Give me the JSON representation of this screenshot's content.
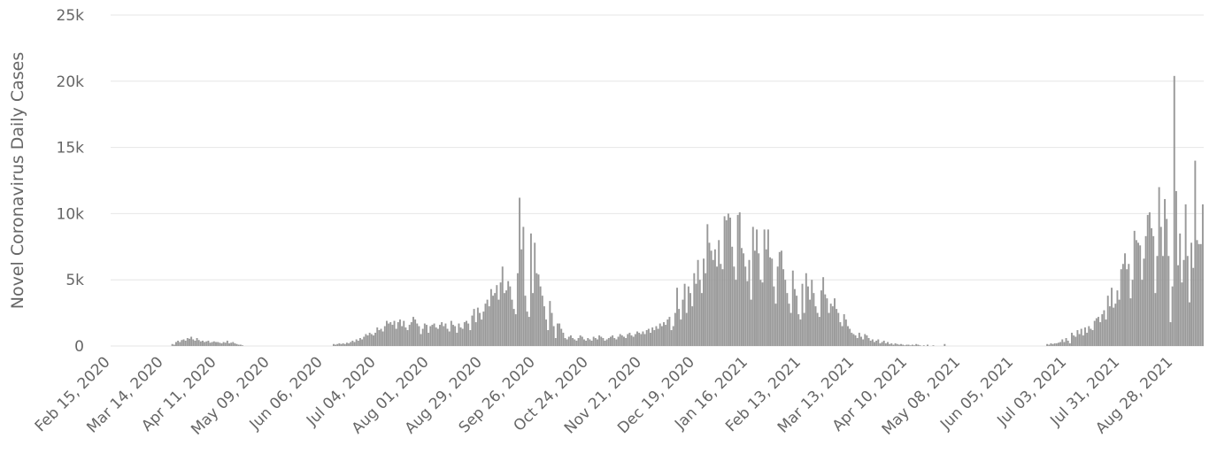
{
  "chart_data": {
    "type": "bar",
    "y_label": "Novel Coronavirus Daily Cases",
    "color": "#999999",
    "grid": true,
    "ylim": [
      0,
      25000
    ],
    "yticks": [
      0,
      {
        "value": 5000,
        "label": "5k"
      },
      {
        "value": 10000,
        "label": "10k"
      },
      {
        "value": 15000,
        "label": "15k"
      },
      {
        "value": 20000,
        "label": "20k"
      },
      {
        "value": 25000,
        "label": "25k"
      }
    ],
    "categories": [
      "Feb 15, 2020",
      null,
      null,
      null,
      null,
      null,
      null,
      null,
      null,
      null,
      null,
      null,
      null,
      null,
      null,
      null,
      null,
      null,
      null,
      null,
      null,
      null,
      null,
      null,
      null,
      null,
      null,
      null,
      "Mar 14, 2020",
      null,
      null,
      null,
      null,
      null,
      null,
      null,
      null,
      null,
      null,
      null,
      null,
      null,
      null,
      null,
      null,
      null,
      null,
      null,
      null,
      null,
      null,
      null,
      null,
      null,
      null,
      null,
      "Apr 11, 2020",
      null,
      null,
      null,
      null,
      null,
      null,
      null,
      null,
      null,
      null,
      null,
      null,
      null,
      null,
      null,
      null,
      null,
      null,
      null,
      null,
      null,
      null,
      null,
      null,
      null,
      null,
      null,
      "May 09, 2020",
      null,
      null,
      null,
      null,
      null,
      null,
      null,
      null,
      null,
      null,
      null,
      null,
      null,
      null,
      null,
      null,
      null,
      null,
      null,
      null,
      null,
      null,
      null,
      null,
      null,
      null,
      null,
      "Jun 06, 2020",
      null,
      null,
      null,
      null,
      null,
      null,
      null,
      null,
      null,
      null,
      null,
      null,
      null,
      null,
      null,
      null,
      null,
      null,
      null,
      null,
      null,
      null,
      null,
      null,
      null,
      null,
      null,
      "Jul 04, 2020",
      null,
      null,
      null,
      null,
      null,
      null,
      null,
      null,
      null,
      null,
      null,
      null,
      null,
      null,
      null,
      null,
      null,
      null,
      null,
      null,
      null,
      null,
      null,
      null,
      null,
      null,
      null,
      "Aug 01, 2020",
      null,
      null,
      null,
      null,
      null,
      null,
      null,
      null,
      null,
      null,
      null,
      null,
      null,
      null,
      null,
      null,
      null,
      null,
      null,
      null,
      null,
      null,
      null,
      null,
      null,
      null,
      null,
      "Aug 29, 2020",
      null,
      null,
      null,
      null,
      null,
      null,
      null,
      null,
      null,
      null,
      null,
      null,
      null,
      null,
      null,
      null,
      null,
      null,
      null,
      null,
      null,
      null,
      null,
      null,
      null,
      null,
      null,
      "Sep 26, 2020",
      null,
      null,
      null,
      null,
      null,
      null,
      null,
      null,
      null,
      null,
      null,
      null,
      null,
      null,
      null,
      null,
      null,
      null,
      null,
      null,
      null,
      null,
      null,
      null,
      null,
      null,
      null,
      "Oct 24, 2020",
      null,
      null,
      null,
      null,
      null,
      null,
      null,
      null,
      null,
      null,
      null,
      null,
      null,
      null,
      null,
      null,
      null,
      null,
      null,
      null,
      null,
      null,
      null,
      null,
      null,
      null,
      null,
      "Nov 21, 2020",
      null,
      null,
      null,
      null,
      null,
      null,
      null,
      null,
      null,
      null,
      null,
      null,
      null,
      null,
      null,
      null,
      null,
      null,
      null,
      null,
      null,
      null,
      null,
      null,
      null,
      null,
      null,
      "Dec 19, 2020",
      null,
      null,
      null,
      null,
      null,
      null,
      null,
      null,
      null,
      null,
      null,
      null,
      null,
      null,
      null,
      null,
      null,
      null,
      null,
      null,
      null,
      null,
      null,
      null,
      null,
      null,
      null,
      "Jan 16, 2021",
      null,
      null,
      null,
      null,
      null,
      null,
      null,
      null,
      null,
      null,
      null,
      null,
      null,
      null,
      null,
      null,
      null,
      null,
      null,
      null,
      null,
      null,
      null,
      null,
      null,
      null,
      null,
      "Feb 13, 2021",
      null,
      null,
      null,
      null,
      null,
      null,
      null,
      null,
      null,
      null,
      null,
      null,
      null,
      null,
      null,
      null,
      null,
      null,
      null,
      null,
      null,
      null,
      null,
      null,
      null,
      null,
      null,
      "Mar 13, 2021",
      null,
      null,
      null,
      null,
      null,
      null,
      null,
      null,
      null,
      null,
      null,
      null,
      null,
      null,
      null,
      null,
      null,
      null,
      null,
      null,
      null,
      null,
      null,
      null,
      null,
      null,
      null,
      "Apr 10, 2021",
      null,
      null,
      null,
      null,
      null,
      null,
      null,
      null,
      null,
      null,
      null,
      null,
      null,
      null,
      null,
      null,
      null,
      null,
      null,
      null,
      null,
      null,
      null,
      null,
      null,
      null,
      null,
      "May 08, 2021",
      null,
      null,
      null,
      null,
      null,
      null,
      null,
      null,
      null,
      null,
      null,
      null,
      null,
      null,
      null,
      null,
      null,
      null,
      null,
      null,
      null,
      null,
      null,
      null,
      null,
      null,
      null,
      "Jun 05, 2021",
      null,
      null,
      null,
      null,
      null,
      null,
      null,
      null,
      null,
      null,
      null,
      null,
      null,
      null,
      null,
      null,
      null,
      null,
      null,
      null,
      null,
      null,
      null,
      null,
      null,
      null,
      null,
      "Jul 03, 2021",
      null,
      null,
      null,
      null,
      null,
      null,
      null,
      null,
      null,
      null,
      null,
      null,
      null,
      null,
      null,
      null,
      null,
      null,
      null,
      null,
      null,
      null,
      null,
      null,
      null,
      null,
      null,
      "Jul 31, 2021",
      null,
      null,
      null,
      null,
      null,
      null,
      null,
      null,
      null,
      null,
      null,
      null,
      null,
      null,
      null,
      null,
      null,
      null,
      null,
      null,
      null,
      null,
      null,
      null,
      null,
      null,
      null,
      "Aug 28, 2021",
      null,
      null,
      null,
      null,
      null,
      null,
      null,
      null,
      null,
      null,
      null,
      null,
      null,
      null,
      null
    ],
    "values": [
      0,
      0,
      0,
      0,
      0,
      0,
      0,
      0,
      0,
      0,
      0,
      0,
      0,
      0,
      0,
      0,
      0,
      0,
      0,
      0,
      0,
      0,
      0,
      0,
      0,
      0,
      0,
      0,
      0,
      0,
      0,
      0,
      150,
      100,
      300,
      400,
      300,
      450,
      500,
      400,
      600,
      550,
      700,
      500,
      400,
      600,
      450,
      350,
      400,
      300,
      350,
      400,
      250,
      300,
      350,
      300,
      300,
      250,
      200,
      300,
      250,
      400,
      200,
      250,
      300,
      200,
      150,
      100,
      100,
      50,
      0,
      0,
      0,
      0,
      0,
      0,
      0,
      0,
      0,
      0,
      0,
      0,
      0,
      0,
      0,
      0,
      0,
      0,
      0,
      0,
      0,
      0,
      0,
      0,
      0,
      0,
      0,
      0,
      0,
      0,
      0,
      0,
      0,
      0,
      0,
      0,
      0,
      0,
      0,
      0,
      0,
      0,
      0,
      0,
      0,
      0,
      0,
      150,
      100,
      150,
      200,
      150,
      200,
      150,
      250,
      200,
      300,
      400,
      300,
      500,
      400,
      600,
      500,
      700,
      900,
      800,
      1000,
      900,
      800,
      1000,
      1400,
      1200,
      1300,
      1100,
      1500,
      1900,
      1700,
      1800,
      1600,
      1900,
      1300,
      1800,
      2000,
      1500,
      1900,
      1400,
      1200,
      1600,
      1800,
      2200,
      2000,
      1700,
      1500,
      900,
      1300,
      1700,
      1600,
      1000,
      1500,
      1600,
      1700,
      1400,
      1300,
      1600,
      1800,
      1500,
      1700,
      1300,
      1100,
      1900,
      1600,
      1500,
      1000,
      1700,
      1400,
      1300,
      1800,
      1900,
      1700,
      1200,
      2300,
      2800,
      1800,
      2900,
      2500,
      2000,
      2600,
      3200,
      3500,
      3000,
      4300,
      3800,
      4000,
      4600,
      3500,
      4800,
      6000,
      4000,
      4200,
      4900,
      4500,
      3500,
      2800,
      2400,
      5500,
      11200,
      7300,
      9000,
      3800,
      2600,
      2200,
      8500,
      4000,
      7800,
      5500,
      5400,
      4500,
      3800,
      3000,
      2000,
      1200,
      3400,
      2500,
      1500,
      600,
      1700,
      1700,
      1300,
      1000,
      600,
      500,
      700,
      800,
      600,
      500,
      400,
      600,
      800,
      700,
      500,
      400,
      600,
      500,
      400,
      700,
      600,
      500,
      800,
      700,
      600,
      400,
      500,
      600,
      700,
      800,
      600,
      500,
      700,
      900,
      800,
      700,
      600,
      900,
      1000,
      800,
      700,
      900,
      1100,
      1000,
      900,
      1100,
      900,
      1200,
      1300,
      1000,
      1400,
      1200,
      1500,
      1300,
      1700,
      1500,
      1800,
      1600,
      2000,
      2200,
      1200,
      1500,
      2500,
      4400,
      2800,
      2000,
      3500,
      4700,
      2500,
      4500,
      4000,
      3000,
      5500,
      4700,
      6500,
      5000,
      4000,
      6600,
      5500,
      9200,
      7800,
      7200,
      6500,
      7300,
      6000,
      8000,
      6200,
      5800,
      9800,
      9500,
      10000,
      9700,
      7500,
      6000,
      5000,
      9900,
      10100,
      7400,
      7000,
      6000,
      4900,
      6500,
      3500,
      9000,
      7200,
      8800,
      7000,
      5000,
      4800,
      8800,
      7300,
      8800,
      6700,
      6600,
      4500,
      3200,
      6000,
      7100,
      7200,
      5800,
      5000,
      4000,
      3200,
      2500,
      5700,
      4300,
      3800,
      2400,
      2000,
      4700,
      2500,
      5500,
      4500,
      3500,
      5000,
      4000,
      3000,
      2500,
      2200,
      4200,
      5200,
      3900,
      3600,
      2500,
      3200,
      3000,
      3600,
      2800,
      2500,
      1800,
      1500,
      2400,
      2000,
      1500,
      1300,
      1000,
      900,
      800,
      600,
      1000,
      700,
      500,
      900,
      800,
      600,
      400,
      500,
      300,
      400,
      500,
      200,
      300,
      400,
      200,
      300,
      150,
      200,
      100,
      200,
      150,
      100,
      150,
      100,
      50,
      100,
      100,
      50,
      100,
      50,
      150,
      100,
      50,
      0,
      50,
      0,
      100,
      0,
      0,
      50,
      0,
      0,
      0,
      0,
      0,
      150,
      0,
      0,
      0,
      0,
      0,
      0,
      0,
      0,
      0,
      0,
      0,
      0,
      0,
      0,
      0,
      0,
      0,
      0,
      0,
      0,
      0,
      0,
      0,
      0,
      0,
      0,
      0,
      0,
      0,
      0,
      0,
      0,
      0,
      0,
      0,
      0,
      0,
      0,
      0,
      0,
      0,
      0,
      0,
      0,
      0,
      0,
      0,
      0,
      0,
      0,
      0,
      0,
      0,
      150,
      100,
      200,
      150,
      200,
      200,
      250,
      300,
      500,
      300,
      600,
      400,
      200,
      1000,
      800,
      700,
      1200,
      900,
      1300,
      800,
      1400,
      1000,
      1500,
      1300,
      1200,
      1900,
      2100,
      2200,
      1800,
      2400,
      2700,
      2000,
      3800,
      3000,
      4400,
      2900,
      3200,
      4200,
      3500,
      5800,
      6200,
      7000,
      5800,
      6200,
      3600,
      5000,
      8700,
      8000,
      7800,
      7600,
      5000,
      6600,
      8300,
      9900,
      10100,
      8900,
      8300,
      4000,
      6800,
      12000,
      9000,
      6800,
      11100,
      9600,
      6800,
      1800,
      4500,
      20400,
      11700,
      6100,
      8500,
      4800,
      6500,
      10700,
      6800,
      3300,
      7800,
      5900,
      14000,
      8000,
      7700,
      7700,
      10700
    ]
  }
}
